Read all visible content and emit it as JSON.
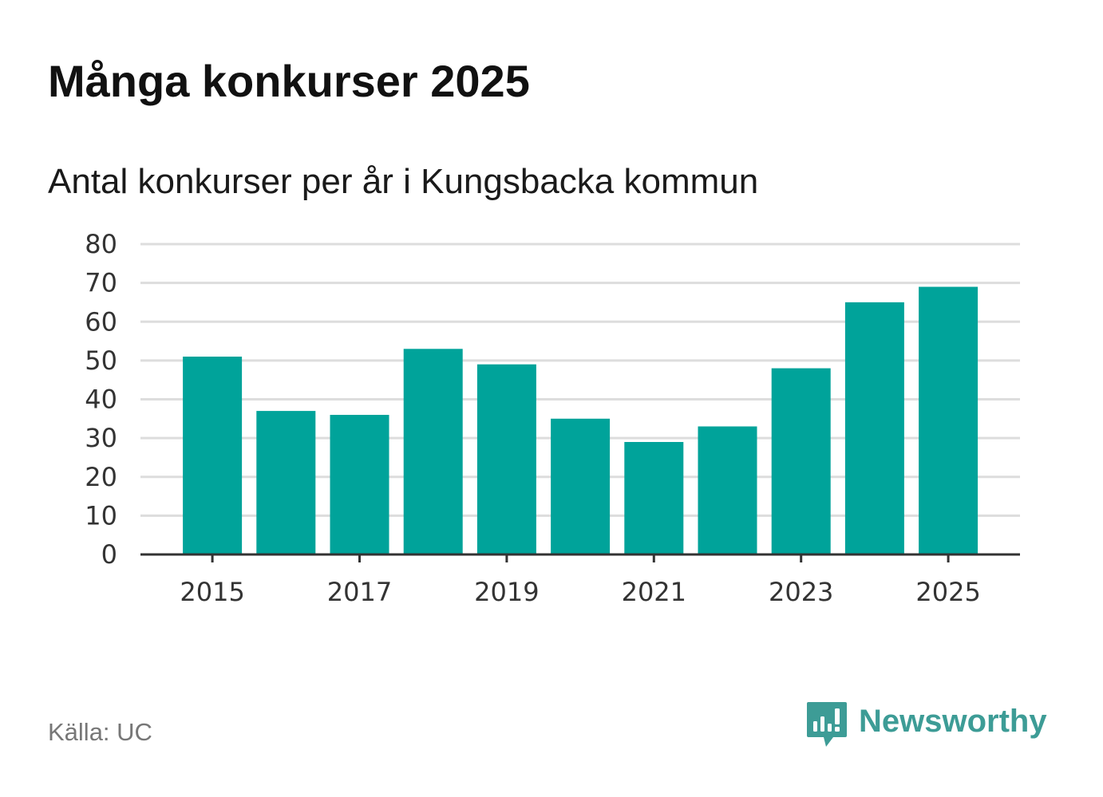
{
  "header": {
    "title": "Många konkurser 2025",
    "subtitle": "Antal konkurser per år i Kungsbacka kommun"
  },
  "footer": {
    "source": "Källa: UC",
    "brand": "Newsworthy",
    "brand_icon": "newsworthy-logo-icon"
  },
  "colors": {
    "bar": "#00a39a",
    "grid": "#dddddd",
    "axis": "#333333",
    "tick_text": "#333333",
    "brand": "#3d9c96"
  },
  "chart_data": {
    "type": "bar",
    "title": "Många konkurser 2025",
    "subtitle": "Antal konkurser per år i Kungsbacka kommun",
    "categories": [
      "2015",
      "2016",
      "2017",
      "2018",
      "2019",
      "2020",
      "2021",
      "2022",
      "2023",
      "2024",
      "2025"
    ],
    "values": [
      51,
      37,
      36,
      53,
      49,
      35,
      29,
      33,
      48,
      65,
      69
    ],
    "x_tick_labels": [
      "2015",
      "2017",
      "2019",
      "2021",
      "2023",
      "2025"
    ],
    "y_ticks": [
      0,
      10,
      20,
      30,
      40,
      50,
      60,
      70,
      80
    ],
    "ylim": [
      0,
      80
    ],
    "xlabel": "",
    "ylabel": "",
    "grid": true,
    "legend": "none"
  }
}
